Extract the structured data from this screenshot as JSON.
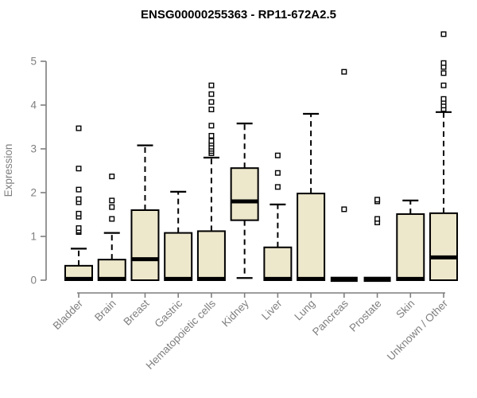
{
  "title": "ENSG00000255363 - RP11-672A2.5",
  "colors": {
    "box_fill": "#EDE7CC",
    "box_stroke": "#000000",
    "median": "#000000",
    "whisker": "#000000",
    "outlier_fill": "#ffffff",
    "axis": "#7f7f7f",
    "label": "#7f7f7f",
    "title": "#000000",
    "background": "#ffffff"
  },
  "chart_data": {
    "type": "boxplot",
    "title": "ENSG00000255363 - RP11-672A2.5",
    "xlabel": "",
    "ylabel": "Expression",
    "ylim": [
      0,
      5.7
    ],
    "yticks": [
      0,
      1,
      2,
      3,
      4,
      5
    ],
    "grid": false,
    "legend": "none",
    "categories": [
      "Bladder",
      "Brain",
      "Breast",
      "Gastric",
      "Hematopoietic cells",
      "Kidney",
      "Liver",
      "Lung",
      "Pancreas",
      "Prostate",
      "Skin",
      "Unknown / Other"
    ],
    "series": [
      {
        "name": "Bladder",
        "whisker_low": 0,
        "q1": 0,
        "median": 0.03,
        "q3": 0.33,
        "whisker_high": 0.72,
        "outliers": [
          1.1,
          1.13,
          1.19,
          1.45,
          1.52,
          1.78,
          1.85,
          2.07,
          2.55,
          3.47
        ]
      },
      {
        "name": "Brain",
        "whisker_low": 0,
        "q1": 0,
        "median": 0.03,
        "q3": 0.47,
        "whisker_high": 1.08,
        "outliers": [
          1.4,
          1.67,
          1.82,
          2.37
        ]
      },
      {
        "name": "Breast",
        "whisker_low": 0,
        "q1": 0,
        "median": 0.48,
        "q3": 1.6,
        "whisker_high": 3.08,
        "outliers": []
      },
      {
        "name": "Gastric",
        "whisker_low": 0,
        "q1": 0,
        "median": 0.03,
        "q3": 1.08,
        "whisker_high": 2.02,
        "outliers": []
      },
      {
        "name": "Hematopoietic cells",
        "whisker_low": 0,
        "q1": 0,
        "median": 0.03,
        "q3": 1.12,
        "whisker_high": 2.8,
        "outliers": [
          2.9,
          2.95,
          3.0,
          3.05,
          3.12,
          3.18,
          3.3,
          3.53,
          3.9,
          4.07,
          4.25,
          4.45
        ]
      },
      {
        "name": "Kidney",
        "whisker_low": 0.05,
        "q1": 1.37,
        "median": 1.8,
        "q3": 2.56,
        "whisker_high": 3.58,
        "outliers": []
      },
      {
        "name": "Liver",
        "whisker_low": 0,
        "q1": 0,
        "median": 0.03,
        "q3": 0.75,
        "whisker_high": 1.73,
        "outliers": [
          2.13,
          2.45,
          2.85
        ]
      },
      {
        "name": "Lung",
        "whisker_low": 0,
        "q1": 0,
        "median": 0.03,
        "q3": 1.98,
        "whisker_high": 3.8,
        "outliers": []
      },
      {
        "name": "Pancreas",
        "whisker_low": 0,
        "q1": 0,
        "median": 0.02,
        "q3": 0,
        "whisker_high": 0,
        "outliers": [
          1.62,
          4.76
        ]
      },
      {
        "name": "Prostate",
        "whisker_low": 0,
        "q1": 0,
        "median": 0.02,
        "q3": 0,
        "whisker_high": 0,
        "outliers": [
          1.32,
          1.4,
          1.8,
          1.84
        ]
      },
      {
        "name": "Skin",
        "whisker_low": 0,
        "q1": 0,
        "median": 0.03,
        "q3": 1.51,
        "whisker_high": 1.82,
        "outliers": []
      },
      {
        "name": "Unknown / Other",
        "whisker_low": 0,
        "q1": 0,
        "median": 0.52,
        "q3": 1.53,
        "whisker_high": 3.84,
        "outliers": [
          3.91,
          3.99,
          4.07,
          4.14,
          4.45,
          4.73,
          4.87,
          4.96,
          5.62
        ]
      }
    ]
  }
}
